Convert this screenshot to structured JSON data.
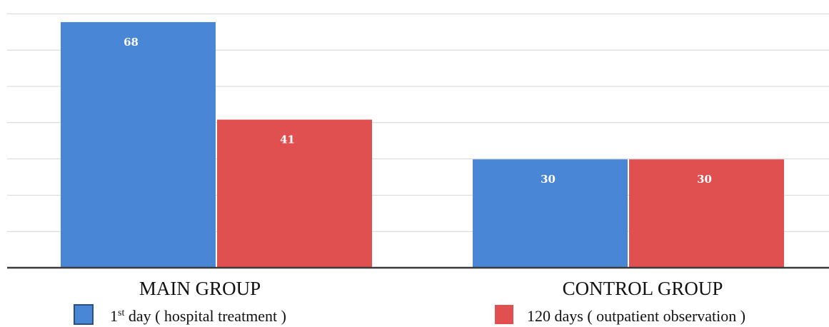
{
  "chart_data": {
    "type": "bar",
    "categories": [
      "MAIN GROUP",
      "CONTROL GROUP"
    ],
    "series": [
      {
        "legend_base": "1",
        "legend_sup": "st",
        "legend_rest": " day ( hospital treatment )",
        "values": [
          68,
          30
        ],
        "color": "#4a86d6"
      },
      {
        "legend_base": "120 days ( outpatient observation )",
        "legend_sup": "",
        "legend_rest": "",
        "values": [
          41,
          30
        ],
        "color": "#e05050"
      }
    ],
    "data_labels": [
      "68",
      "41",
      "30",
      "30"
    ],
    "ylim": [
      0,
      68
    ],
    "grid": true,
    "legend_position": "bottom"
  }
}
